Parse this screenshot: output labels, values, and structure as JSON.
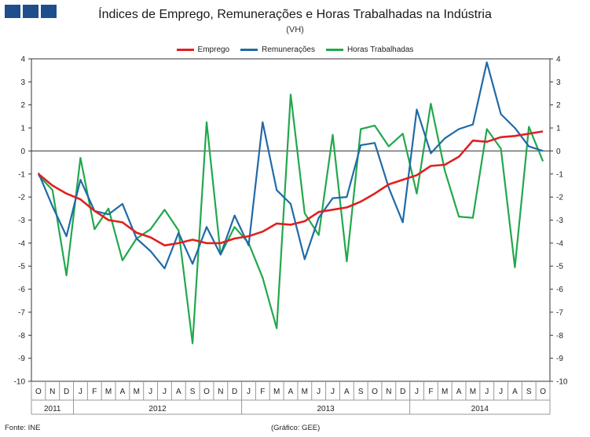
{
  "header": {
    "title": "Índices de Emprego, Remunerações e Horas Trabalhadas na Indústria",
    "subtitle": "(VH)",
    "logo_color": "#1f4e8c"
  },
  "footer": {
    "source": "Fonte: INE",
    "credit": "(Gráfico: GEE)"
  },
  "chart_data": {
    "type": "line",
    "title": "Índices de Emprego, Remunerações e Horas Trabalhadas na Indústria",
    "subtitle": "(VH)",
    "ylim": [
      -10,
      4
    ],
    "yticks": [
      "4",
      "3",
      "2",
      "1",
      "0",
      "-1",
      "-2",
      "-3",
      "-4",
      "-5",
      "-6",
      "-7",
      "-8",
      "-9",
      "-10"
    ],
    "legend_position": "top-center",
    "categories": [
      "O",
      "N",
      "D",
      "J",
      "F",
      "M",
      "A",
      "M",
      "J",
      "J",
      "A",
      "S",
      "O",
      "N",
      "D",
      "J",
      "F",
      "M",
      "A",
      "M",
      "J",
      "J",
      "A",
      "S",
      "O",
      "N",
      "D",
      "J",
      "F",
      "M",
      "A",
      "M",
      "J",
      "J",
      "A",
      "S",
      "O"
    ],
    "years": [
      {
        "label": "2011",
        "start": 0,
        "end": 2
      },
      {
        "label": "2012",
        "start": 3,
        "end": 14
      },
      {
        "label": "2013",
        "start": 15,
        "end": 26
      },
      {
        "label": "2014",
        "start": 27,
        "end": 36
      }
    ],
    "series": [
      {
        "name": "Emprego",
        "color": "#e02020",
        "values": [
          -1.0,
          -1.5,
          -1.85,
          -2.1,
          -2.6,
          -3.0,
          -3.1,
          -3.55,
          -3.75,
          -4.1,
          -4.0,
          -3.85,
          -4.0,
          -4.0,
          -3.8,
          -3.7,
          -3.5,
          -3.15,
          -3.2,
          -3.05,
          -2.65,
          -2.55,
          -2.45,
          -2.2,
          -1.85,
          -1.45,
          -1.25,
          -1.05,
          -0.65,
          -0.6,
          -0.25,
          0.45,
          0.4,
          0.6,
          0.65,
          0.75,
          0.85
        ]
      },
      {
        "name": "Remunerações",
        "color": "#1f6aa8",
        "values": [
          -0.95,
          -2.4,
          -3.7,
          -1.25,
          -2.6,
          -2.75,
          -2.3,
          -3.8,
          -4.35,
          -5.1,
          -3.55,
          -4.9,
          -3.3,
          -4.5,
          -2.8,
          -4.1,
          1.25,
          -1.7,
          -2.3,
          -4.7,
          -2.9,
          -2.05,
          -2.0,
          0.25,
          0.35,
          -1.6,
          -3.1,
          1.8,
          -0.1,
          0.55,
          0.95,
          1.15,
          3.85,
          1.6,
          1.0,
          0.2,
          0.0
        ]
      },
      {
        "name": "Horas Trabalhadas",
        "color": "#22a84c",
        "values": [
          -1.05,
          -1.7,
          -5.4,
          -0.3,
          -3.4,
          -2.5,
          -4.75,
          -3.8,
          -3.4,
          -2.55,
          -3.45,
          -8.35,
          1.25,
          -4.5,
          -3.3,
          -4.0,
          -5.5,
          -7.7,
          2.45,
          -2.7,
          -3.65,
          0.7,
          -4.8,
          0.95,
          1.1,
          0.2,
          0.75,
          -1.85,
          2.05,
          -0.85,
          -2.85,
          -2.9,
          0.95,
          0.1,
          -5.05,
          1.05,
          -0.45
        ]
      }
    ]
  }
}
